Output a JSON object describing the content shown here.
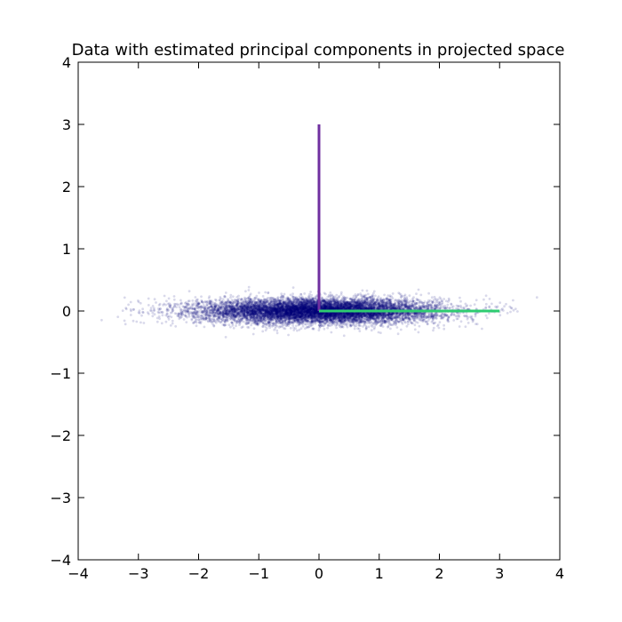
{
  "chart_data": {
    "type": "scatter",
    "title": "Data with estimated principal components in projected space",
    "xlabel": "",
    "ylabel": "",
    "xlim": [
      -4,
      4
    ],
    "ylim": [
      -4,
      4
    ],
    "xticks": [
      "−4",
      "−3",
      "−2",
      "−1",
      "0",
      "1",
      "2",
      "3",
      "4"
    ],
    "yticks": [
      "−4",
      "−3",
      "−2",
      "−1",
      "0",
      "1",
      "2",
      "3",
      "4"
    ],
    "grid": false,
    "legend": "none",
    "series": [
      {
        "kind": "scatter",
        "color": "#00007a",
        "alpha": 0.15,
        "distribution": {
          "center": [
            0,
            0
          ],
          "std_x": 1.0,
          "std_y": 0.1,
          "approx_count": 10000
        }
      }
    ],
    "components": [
      {
        "color": "#7030a0",
        "x": [
          0,
          0
        ],
        "y": [
          0,
          3
        ]
      },
      {
        "color": "#2ecc71",
        "x": [
          0,
          3
        ],
        "y": [
          0,
          0
        ]
      }
    ]
  }
}
